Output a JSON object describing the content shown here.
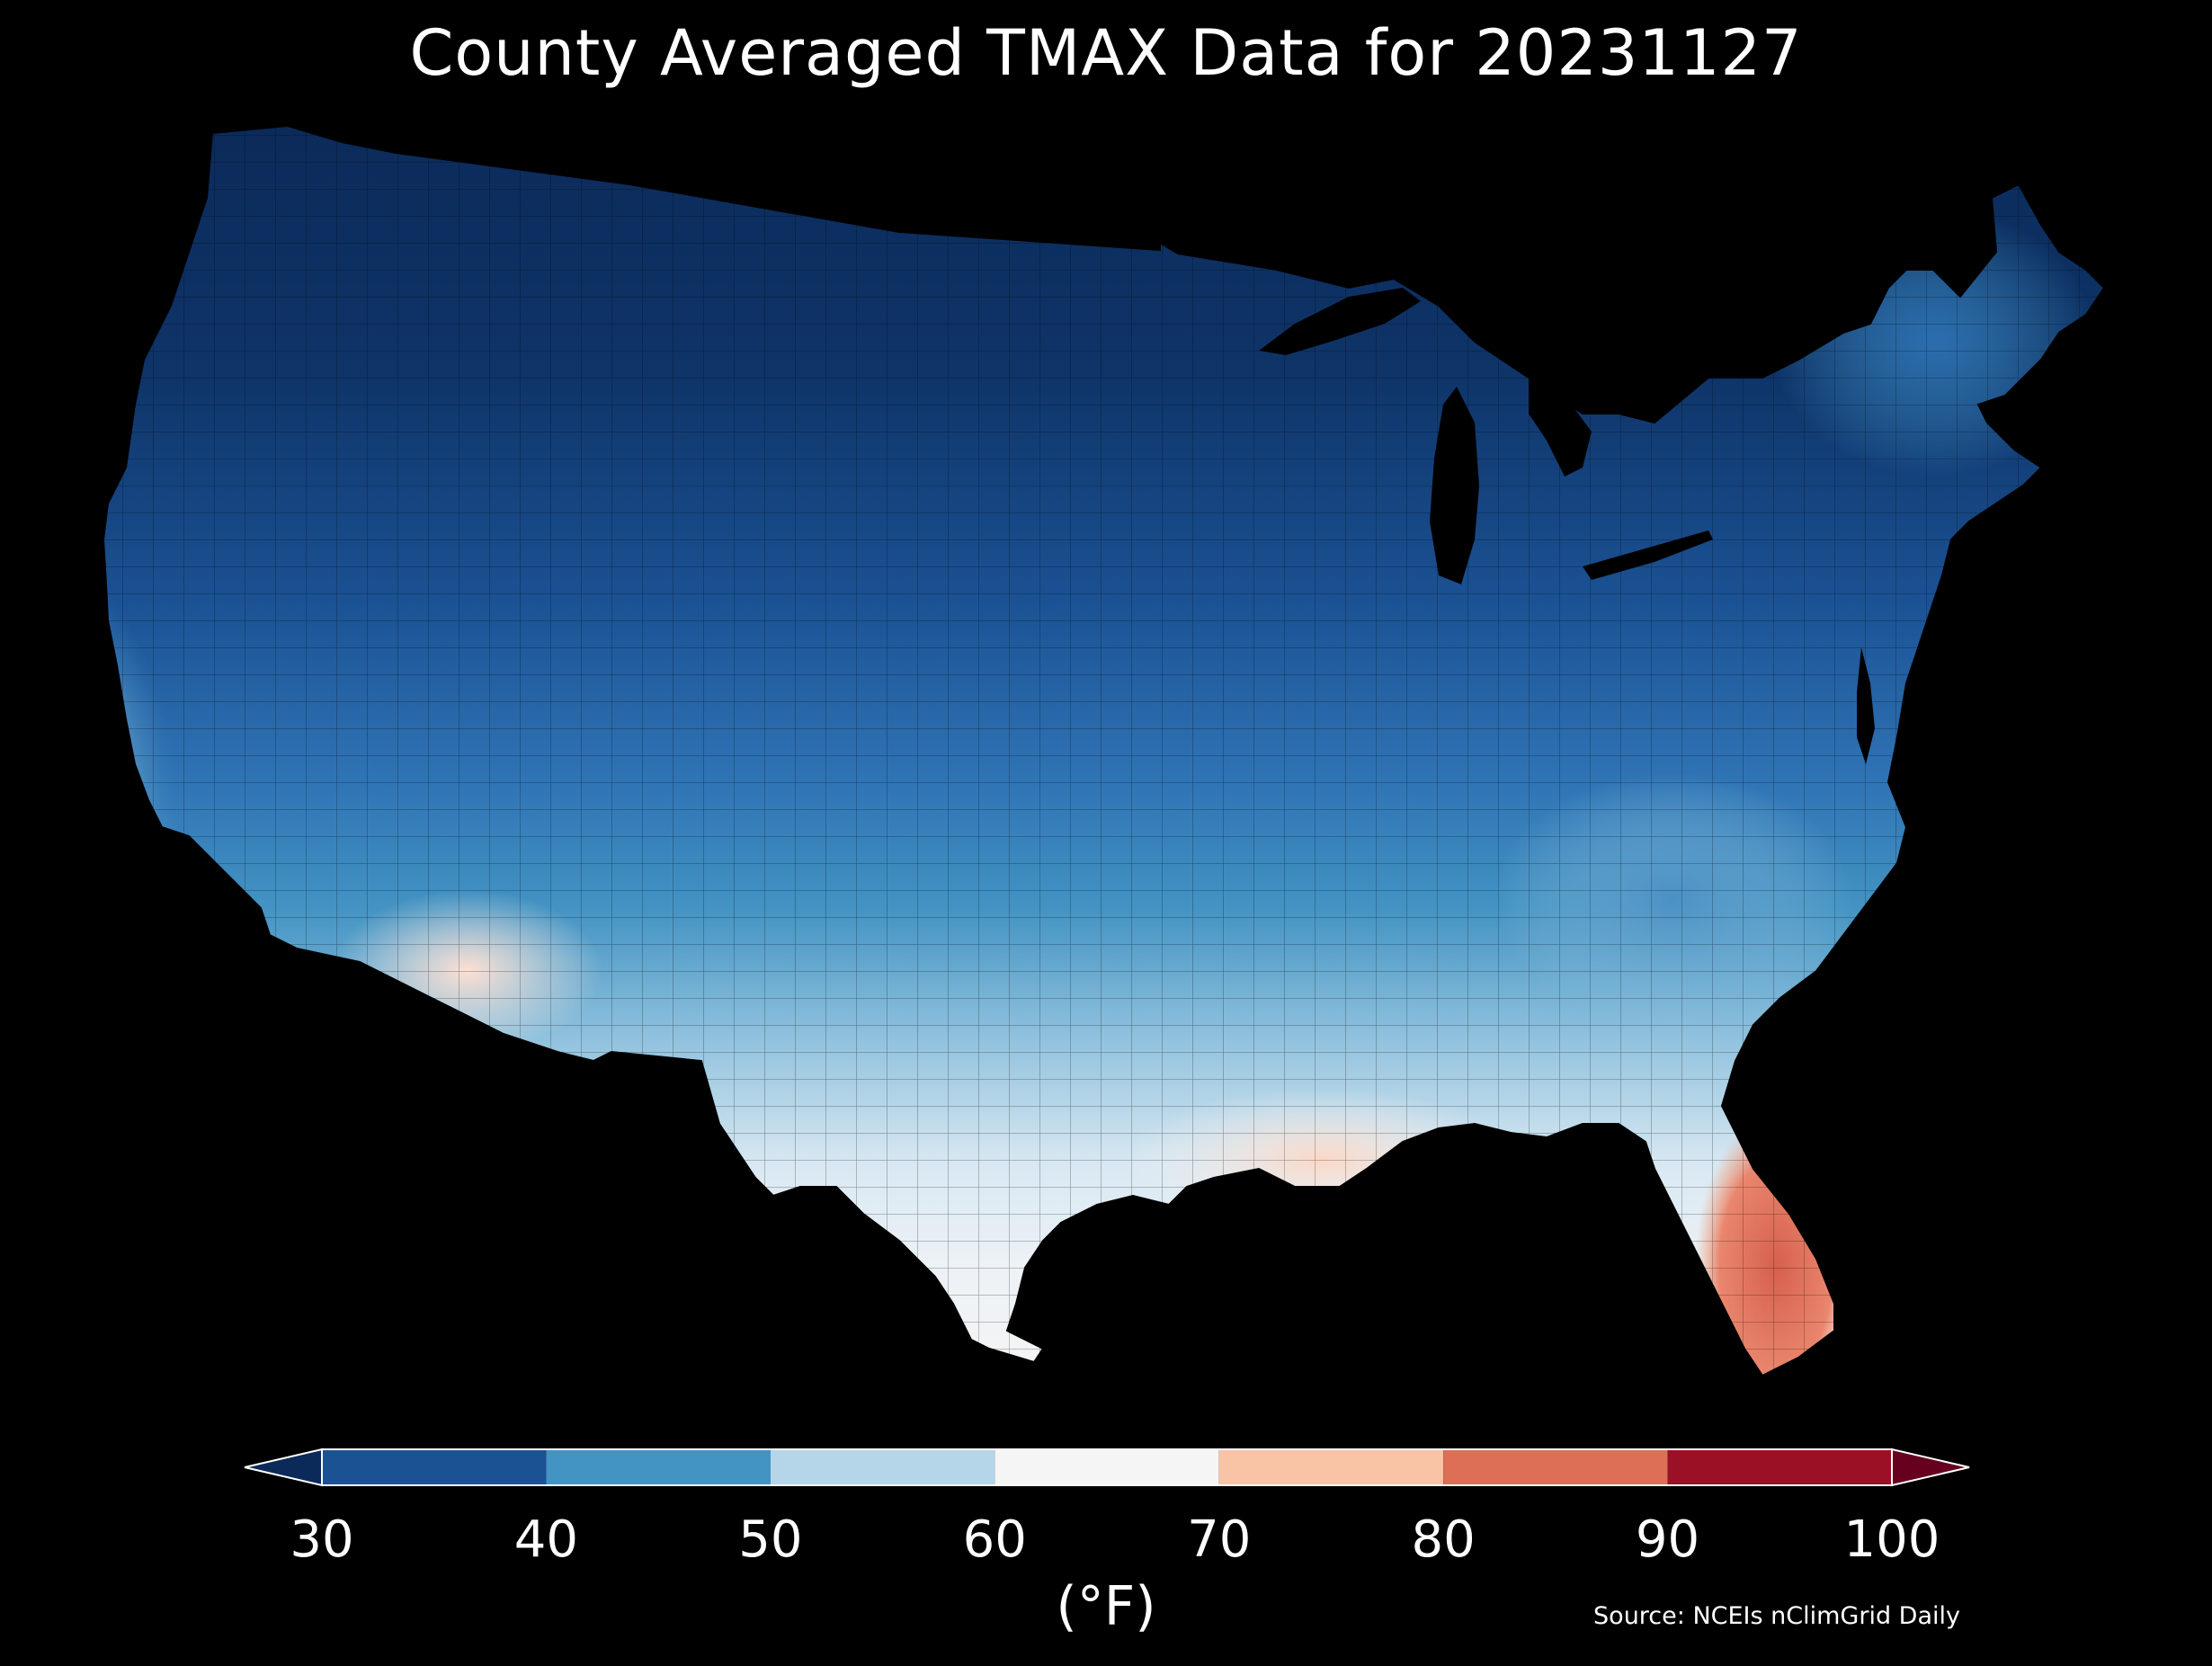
{
  "title": "County Averaged TMAX Data for 20231127",
  "colorbar": {
    "ticks": [
      "30",
      "40",
      "50",
      "60",
      "70",
      "80",
      "90",
      "100"
    ],
    "units": "(°F)",
    "extend": "both",
    "bins": [
      {
        "min": 30,
        "max": 40,
        "color": "#1b5294"
      },
      {
        "min": 40,
        "max": 50,
        "color": "#4393c3"
      },
      {
        "min": 50,
        "max": 60,
        "color": "#b5d6e9"
      },
      {
        "min": 60,
        "max": 70,
        "color": "#f5f5f5"
      },
      {
        "min": 70,
        "max": 80,
        "color": "#f9c3a5"
      },
      {
        "min": 80,
        "max": 90,
        "color": "#dc6f56"
      },
      {
        "min": 90,
        "max": 100,
        "color": "#9a1025"
      }
    ],
    "under_color": "#0b2a5a",
    "over_color": "#67001f"
  },
  "source": "Source: NCEIs nClimGrid Daily"
}
